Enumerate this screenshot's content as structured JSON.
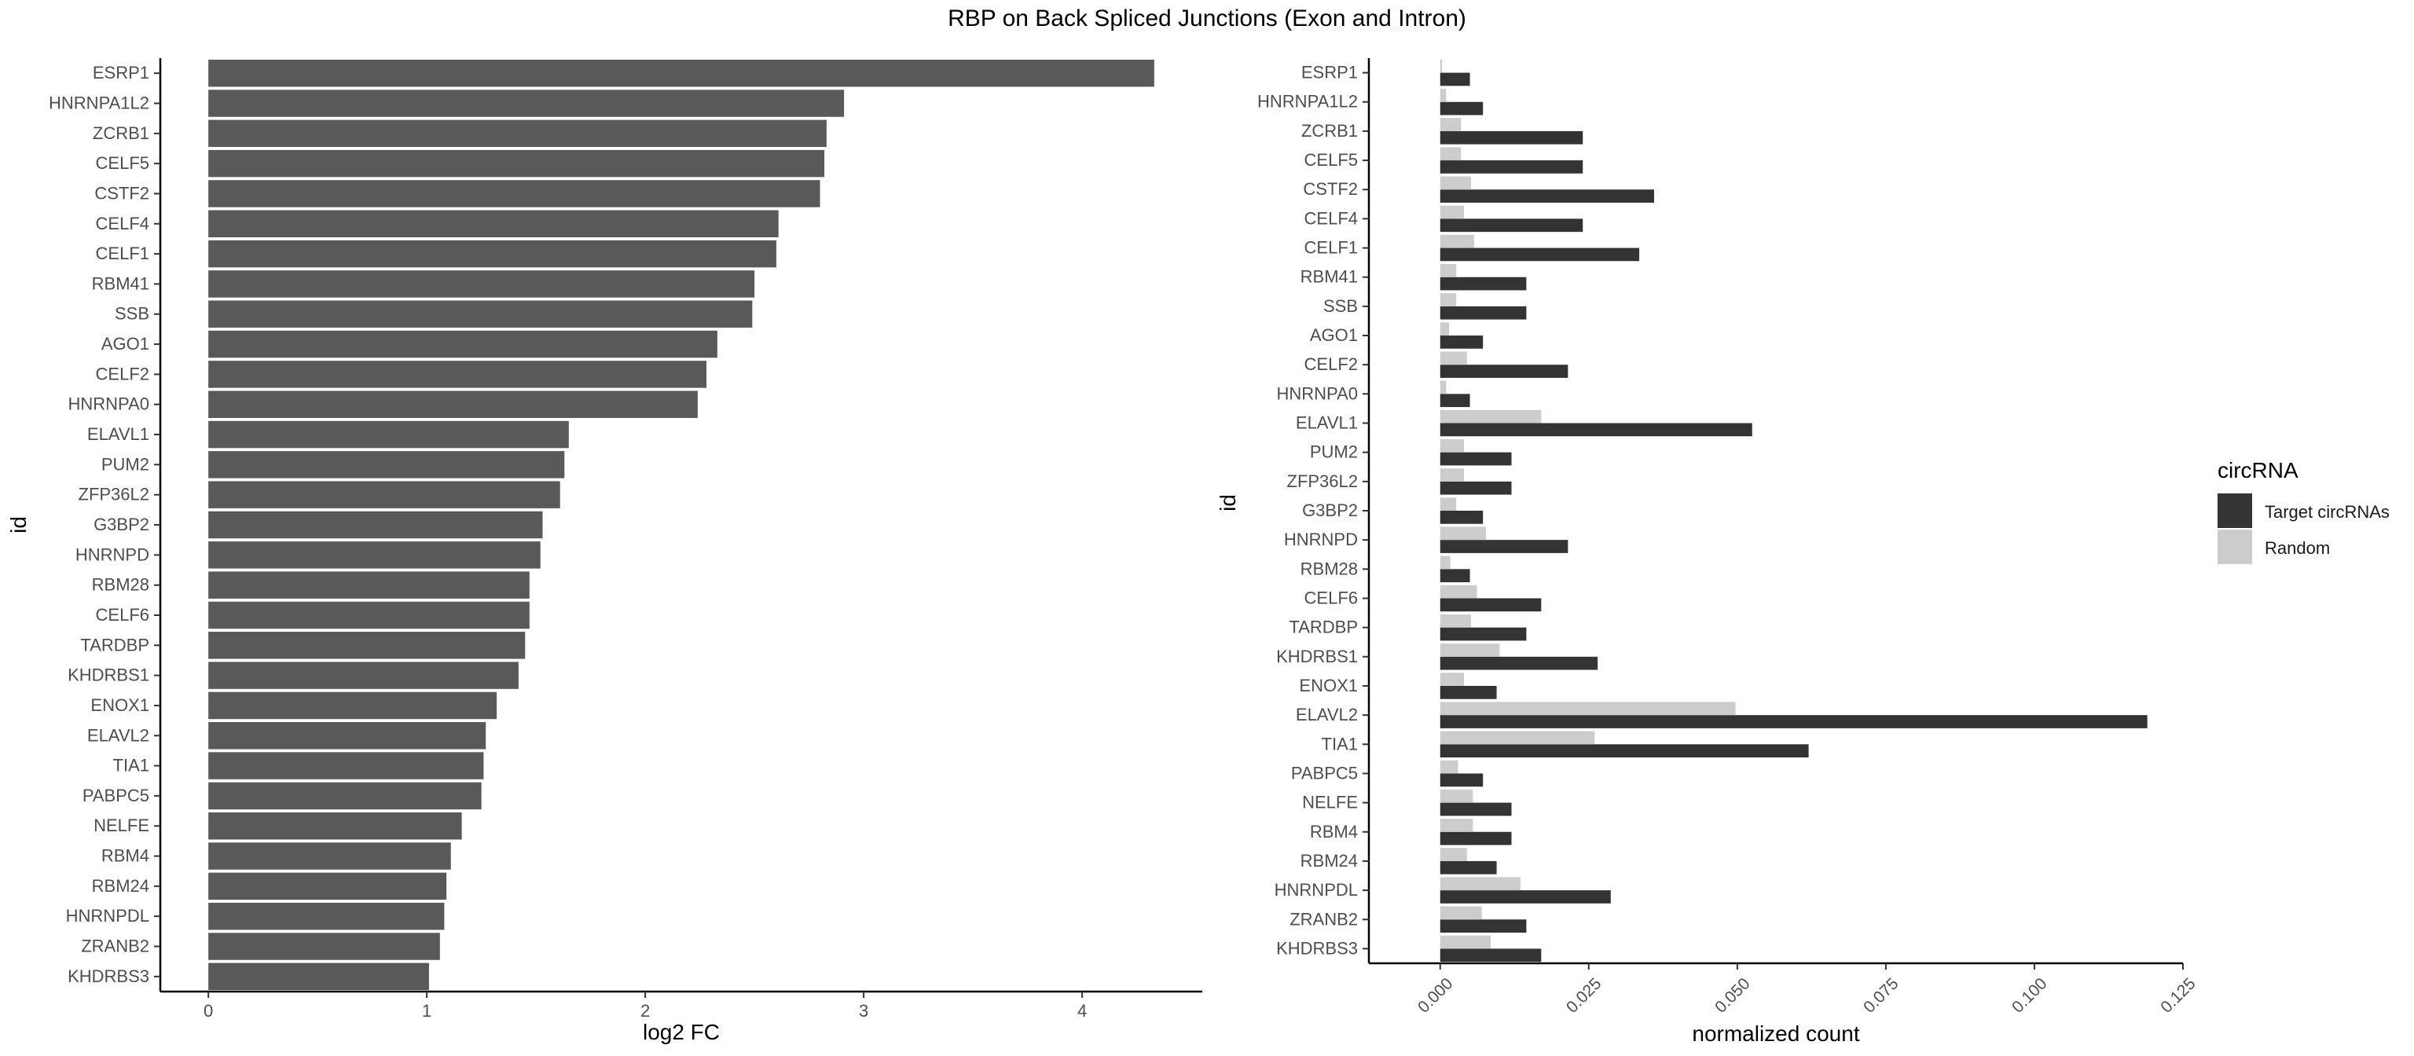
{
  "figure": {
    "title": "RBP on Back Spliced Junctions (Exon and Intron)"
  },
  "chart_data": [
    {
      "type": "bar",
      "orientation": "horizontal",
      "xlabel": "log2 FC",
      "ylabel": "id",
      "xlim": [
        -0.22,
        4.55
      ],
      "xticks": [
        0,
        1,
        2,
        3,
        4
      ],
      "grid": false,
      "bar_color": "#595959",
      "categories": [
        "ESRP1",
        "HNRNPA1L2",
        "ZCRB1",
        "CELF5",
        "CSTF2",
        "CELF4",
        "CELF1",
        "RBM41",
        "SSB",
        "AGO1",
        "CELF2",
        "HNRNPA0",
        "ELAVL1",
        "PUM2",
        "ZFP36L2",
        "G3BP2",
        "HNRNPD",
        "RBM28",
        "CELF6",
        "TARDBP",
        "KHDRBS1",
        "ENOX1",
        "ELAVL2",
        "TIA1",
        "PABPC5",
        "NELFE",
        "RBM4",
        "RBM24",
        "HNRNPDL",
        "ZRANB2",
        "KHDRBS3"
      ],
      "values": [
        4.33,
        2.91,
        2.83,
        2.82,
        2.8,
        2.61,
        2.6,
        2.5,
        2.49,
        2.33,
        2.28,
        2.24,
        1.65,
        1.63,
        1.61,
        1.53,
        1.52,
        1.47,
        1.47,
        1.45,
        1.42,
        1.32,
        1.27,
        1.26,
        1.25,
        1.16,
        1.11,
        1.09,
        1.08,
        1.06,
        1.01
      ]
    },
    {
      "type": "bar",
      "orientation": "horizontal",
      "grouping": "dodge",
      "xlabel": "normalized count",
      "ylabel": "id",
      "xlim": [
        -0.012,
        0.125
      ],
      "xticks": [
        0.0,
        0.025,
        0.05,
        0.075,
        0.1,
        0.125
      ],
      "xtick_labels": [
        "0.000",
        "0.025",
        "0.050",
        "0.075",
        "0.100",
        "0.125"
      ],
      "grid": false,
      "legend": {
        "title": "circRNA",
        "position": "right"
      },
      "categories": [
        "ESRP1",
        "HNRNPA1L2",
        "ZCRB1",
        "CELF5",
        "CSTF2",
        "CELF4",
        "CELF1",
        "RBM41",
        "SSB",
        "AGO1",
        "CELF2",
        "HNRNPA0",
        "ELAVL1",
        "PUM2",
        "ZFP36L2",
        "G3BP2",
        "HNRNPD",
        "RBM28",
        "CELF6",
        "TARDBP",
        "KHDRBS1",
        "ENOX1",
        "ELAVL2",
        "TIA1",
        "PABPC5",
        "NELFE",
        "RBM4",
        "RBM24",
        "HNRNPDL",
        "ZRANB2",
        "KHDRBS3"
      ],
      "series": [
        {
          "name": "Target circRNAs",
          "color": "#333333",
          "values": [
            0.005,
            0.0072,
            0.024,
            0.024,
            0.036,
            0.024,
            0.0335,
            0.0145,
            0.0145,
            0.0072,
            0.0215,
            0.005,
            0.0525,
            0.012,
            0.012,
            0.0072,
            0.0215,
            0.005,
            0.017,
            0.0145,
            0.0265,
            0.0095,
            0.119,
            0.062,
            0.0072,
            0.012,
            0.012,
            0.0095,
            0.0287,
            0.0145,
            0.017
          ]
        },
        {
          "name": "Random",
          "color": "#cccccc",
          "values": [
            0.0003,
            0.001,
            0.0035,
            0.0035,
            0.0052,
            0.004,
            0.0057,
            0.0027,
            0.0027,
            0.0015,
            0.0045,
            0.001,
            0.017,
            0.004,
            0.004,
            0.0027,
            0.0077,
            0.0017,
            0.0062,
            0.0052,
            0.01,
            0.004,
            0.0497,
            0.026,
            0.003,
            0.0055,
            0.0055,
            0.0045,
            0.0135,
            0.007,
            0.0085
          ]
        }
      ]
    }
  ]
}
